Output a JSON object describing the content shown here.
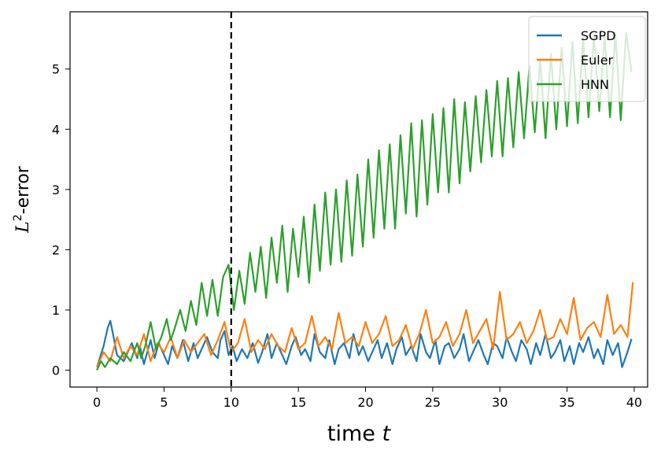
{
  "chart_data": {
    "type": "line",
    "xlabel_text": "time ",
    "xlabel_var": "t",
    "ylabel_main": "L",
    "ylabel_sup": "2",
    "ylabel_suffix": "-error",
    "xlim": [
      -2,
      41
    ],
    "ylim": [
      -0.28,
      5.95
    ],
    "xticks": [
      0,
      5,
      10,
      15,
      20,
      25,
      30,
      35,
      40
    ],
    "yticks": [
      0,
      1,
      2,
      3,
      4,
      5
    ],
    "vline": {
      "x": 10,
      "style": "dashed",
      "color": "#000000"
    },
    "legend_position": "top-right",
    "series": [
      {
        "name": "SGPD",
        "color": "#1f77b4",
        "x": [
          0,
          0.5,
          0.8,
          1.0,
          1.2,
          1.5,
          2.0,
          2.3,
          2.6,
          3.0,
          3.2,
          3.5,
          4.0,
          4.3,
          4.6,
          5.0,
          5.3,
          5.6,
          6.0,
          6.4,
          6.8,
          7.2,
          7.5,
          7.8,
          8.2,
          8.6,
          9.0,
          9.2,
          9.5,
          9.8,
          10.1,
          10.4,
          10.8,
          11.2,
          11.6,
          12.0,
          12.3,
          12.7,
          13.0,
          13.4,
          13.8,
          14.1,
          14.5,
          14.8,
          15.2,
          15.5,
          15.9,
          16.2,
          16.6,
          17.0,
          17.3,
          17.7,
          18.0,
          18.4,
          18.8,
          19.1,
          19.5,
          19.8,
          20.2,
          20.5,
          20.9,
          21.2,
          21.6,
          22.0,
          22.3,
          22.7,
          23.0,
          23.4,
          23.8,
          24.1,
          24.5,
          24.8,
          25.2,
          25.5,
          25.9,
          26.2,
          26.6,
          27.0,
          27.3,
          27.7,
          28.0,
          28.4,
          28.8,
          29.1,
          29.5,
          29.8,
          30.2,
          30.5,
          30.9,
          31.2,
          31.6,
          32.0,
          32.3,
          32.7,
          33.0,
          33.4,
          33.8,
          34.1,
          34.5,
          34.8,
          35.2,
          35.5,
          35.9,
          36.2,
          36.6,
          37.0,
          37.3,
          37.7,
          38.0,
          38.4,
          38.8,
          39.1,
          39.5,
          39.8
        ],
        "y": [
          0.05,
          0.4,
          0.7,
          0.82,
          0.6,
          0.25,
          0.15,
          0.3,
          0.45,
          0.2,
          0.4,
          0.1,
          0.5,
          0.2,
          0.45,
          0.25,
          0.1,
          0.4,
          0.2,
          0.5,
          0.15,
          0.45,
          0.2,
          0.35,
          0.55,
          0.3,
          0.2,
          0.5,
          0.65,
          0.25,
          0.4,
          0.15,
          0.35,
          0.2,
          0.45,
          0.12,
          0.3,
          0.6,
          0.2,
          0.45,
          0.25,
          0.1,
          0.4,
          0.55,
          0.25,
          0.35,
          0.15,
          0.6,
          0.3,
          0.2,
          0.5,
          0.1,
          0.35,
          0.45,
          0.2,
          0.6,
          0.25,
          0.4,
          0.15,
          0.3,
          0.5,
          0.2,
          0.45,
          0.1,
          0.35,
          0.55,
          0.25,
          0.4,
          0.15,
          0.6,
          0.3,
          0.2,
          0.5,
          0.1,
          0.4,
          0.45,
          0.2,
          0.35,
          0.6,
          0.15,
          0.3,
          0.5,
          0.25,
          0.1,
          0.45,
          0.4,
          0.2,
          0.55,
          0.3,
          0.15,
          0.5,
          0.35,
          0.1,
          0.45,
          0.25,
          0.6,
          0.2,
          0.3,
          0.5,
          0.15,
          0.4,
          0.1,
          0.45,
          0.3,
          0.55,
          0.2,
          0.35,
          0.1,
          0.5,
          0.25,
          0.45,
          0.05,
          0.3,
          0.52
        ]
      },
      {
        "name": "Euler",
        "color": "#ff7f0e",
        "x": [
          0,
          0.5,
          1.0,
          1.5,
          2.0,
          2.5,
          3.0,
          3.5,
          4.0,
          4.5,
          5.0,
          5.5,
          6.0,
          6.5,
          7.0,
          7.5,
          8.0,
          8.5,
          9.0,
          9.5,
          10.0,
          10.5,
          11.0,
          11.5,
          12.0,
          12.5,
          13.0,
          13.5,
          14.0,
          14.5,
          15.0,
          15.5,
          16.0,
          16.5,
          17.0,
          17.5,
          18.0,
          18.5,
          19.0,
          19.5,
          20.0,
          20.5,
          21.0,
          21.5,
          22.0,
          22.5,
          23.0,
          23.5,
          24.0,
          24.5,
          25.0,
          25.5,
          26.0,
          26.5,
          27.0,
          27.5,
          28.0,
          28.5,
          29.0,
          29.5,
          30.0,
          30.5,
          31.0,
          31.5,
          32.0,
          32.5,
          33.0,
          33.5,
          34.0,
          34.5,
          35.0,
          35.5,
          36.0,
          36.5,
          37.0,
          37.5,
          38.0,
          38.5,
          39.0,
          39.5,
          39.9
        ],
        "y": [
          0.05,
          0.3,
          0.15,
          0.55,
          0.2,
          0.4,
          0.25,
          0.6,
          0.15,
          0.45,
          0.3,
          0.55,
          0.2,
          0.5,
          0.3,
          0.45,
          0.6,
          0.25,
          0.5,
          0.8,
          0.3,
          0.45,
          0.85,
          0.3,
          0.5,
          0.35,
          0.6,
          0.4,
          0.3,
          0.7,
          0.35,
          0.45,
          0.9,
          0.4,
          0.55,
          0.35,
          0.95,
          0.45,
          0.55,
          0.4,
          0.8,
          0.45,
          0.6,
          0.9,
          0.4,
          0.5,
          0.75,
          0.35,
          0.6,
          1.0,
          0.45,
          0.55,
          0.8,
          0.4,
          0.6,
          1.0,
          0.45,
          0.65,
          0.85,
          0.35,
          1.3,
          0.5,
          0.6,
          0.8,
          0.45,
          0.65,
          1.0,
          0.5,
          0.55,
          0.85,
          0.6,
          1.2,
          0.5,
          0.7,
          0.8,
          0.55,
          1.25,
          0.6,
          0.75,
          0.55,
          1.46
        ]
      },
      {
        "name": "HNN",
        "color": "#2ca02c",
        "x": [
          0,
          0.3,
          0.6,
          1.0,
          1.5,
          2.0,
          2.5,
          3.0,
          3.3,
          3.6,
          4.0,
          4.4,
          4.8,
          5.2,
          5.5,
          5.8,
          6.2,
          6.6,
          7.0,
          7.4,
          7.8,
          8.2,
          8.6,
          9.0,
          9.4,
          9.8,
          10.2,
          10.6,
          11.0,
          11.4,
          11.8,
          12.2,
          12.6,
          13.0,
          13.4,
          13.8,
          14.2,
          14.6,
          15.0,
          15.4,
          15.8,
          16.2,
          16.6,
          17.0,
          17.4,
          17.8,
          18.2,
          18.6,
          19.0,
          19.4,
          19.8,
          20.2,
          20.6,
          21.0,
          21.4,
          21.8,
          22.2,
          22.6,
          23.0,
          23.4,
          23.8,
          24.2,
          24.6,
          25.0,
          25.4,
          25.8,
          26.2,
          26.6,
          27.0,
          27.4,
          27.8,
          28.2,
          28.6,
          29.0,
          29.4,
          29.8,
          30.2,
          30.6,
          31.0,
          31.4,
          31.8,
          32.2,
          32.6,
          33.0,
          33.4,
          33.8,
          34.2,
          34.6,
          35.0,
          35.4,
          35.8,
          36.2,
          36.6,
          37.0,
          37.4,
          37.8,
          38.2,
          38.6,
          39.0,
          39.4,
          39.8
        ],
        "y": [
          0.0,
          0.15,
          0.05,
          0.2,
          0.1,
          0.3,
          0.15,
          0.45,
          0.2,
          0.4,
          0.8,
          0.35,
          0.55,
          0.85,
          0.5,
          0.7,
          1.0,
          0.65,
          1.15,
          0.75,
          1.45,
          0.9,
          1.5,
          0.9,
          1.55,
          1.75,
          1.0,
          1.65,
          1.1,
          1.95,
          1.3,
          2.05,
          1.2,
          2.2,
          1.45,
          2.4,
          1.3,
          2.35,
          1.55,
          2.55,
          1.45,
          2.75,
          1.65,
          2.95,
          1.75,
          3.0,
          1.8,
          3.15,
          1.9,
          3.25,
          2.05,
          3.5,
          2.2,
          3.65,
          2.35,
          3.75,
          2.35,
          3.9,
          2.6,
          4.1,
          2.55,
          4.15,
          2.75,
          4.25,
          2.95,
          4.35,
          2.95,
          4.5,
          3.1,
          4.45,
          3.3,
          4.55,
          3.45,
          4.65,
          3.55,
          4.8,
          3.55,
          4.85,
          3.7,
          4.95,
          3.85,
          5.05,
          3.95,
          5.15,
          3.85,
          5.25,
          4.0,
          5.35,
          4.05,
          5.45,
          4.1,
          5.5,
          4.2,
          5.55,
          4.3,
          5.55,
          4.2,
          5.6,
          4.15,
          5.6,
          4.95
        ]
      }
    ]
  }
}
